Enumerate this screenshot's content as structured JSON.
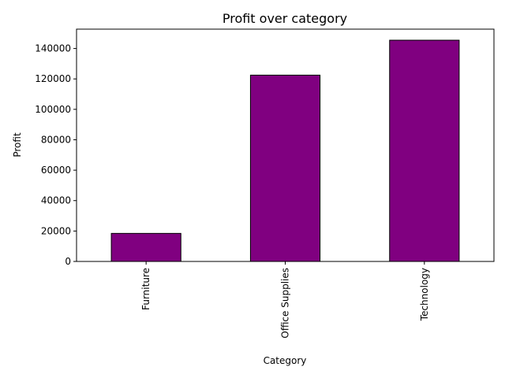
{
  "chart_data": {
    "type": "bar",
    "title": "Profit over category",
    "xlabel": "Category",
    "ylabel": "Profit",
    "categories": [
      "Furniture",
      "Office Supplies",
      "Technology"
    ],
    "values": [
      18451,
      122491,
      145455
    ],
    "ylim": [
      0,
      152727
    ],
    "yticks": [
      0,
      20000,
      40000,
      60000,
      80000,
      100000,
      120000,
      140000
    ],
    "ytick_labels": [
      "0",
      "20000",
      "40000",
      "60000",
      "80000",
      "100000",
      "120000",
      "140000"
    ],
    "bar_color": "#800080",
    "edge_color": "#000000",
    "grid": false,
    "legend": "none"
  }
}
